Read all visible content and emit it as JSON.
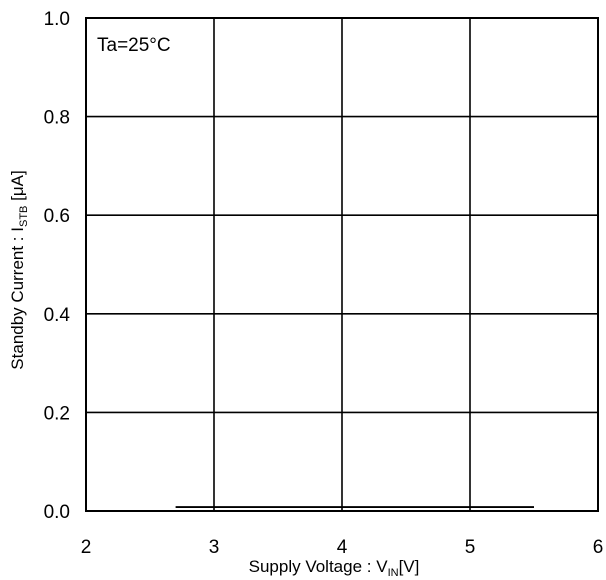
{
  "chart_data": {
    "type": "line",
    "title": "",
    "annotation": "Ta=25°C",
    "xlabel": {
      "main": "Supply Voltage : V",
      "sub": "IN",
      "unit": "[V]"
    },
    "ylabel": {
      "main": "Standby Current : I",
      "sub": "STB",
      "unit": " [μA]"
    },
    "xlim": [
      2,
      6
    ],
    "ylim": [
      0.0,
      1.0
    ],
    "x_ticks": [
      "2",
      "3",
      "4",
      "5",
      "6"
    ],
    "y_ticks": [
      "0.0",
      "0.2",
      "0.4",
      "0.6",
      "0.8",
      "1.0"
    ],
    "grid": true,
    "series": [
      {
        "x": [
          2.7,
          5.5
        ],
        "y": [
          0.008,
          0.008
        ]
      }
    ],
    "colors": {
      "line": "#000000",
      "grid": "#000000",
      "background": "#ffffff"
    }
  }
}
